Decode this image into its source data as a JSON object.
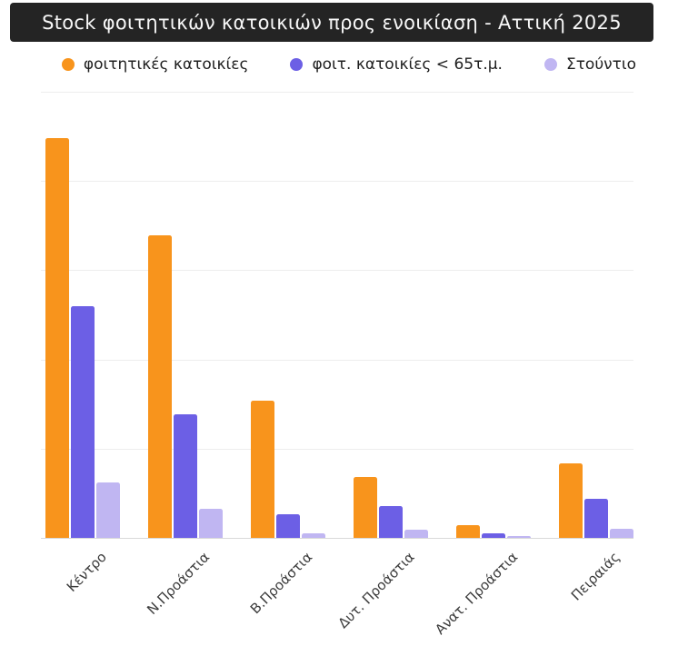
{
  "title": "Stock φοιτητικών κατοικιών προς ενοικίαση - Αττική 2025",
  "legend": [
    {
      "label": "φοιτητικές κατοικίες",
      "color": "#F8941C",
      "icon": "circle-dot-icon"
    },
    {
      "label": "φοιτ. κατοικίες < 65τ.μ.",
      "color": "#6C5FE5",
      "icon": "circle-dot-icon"
    },
    {
      "label": "Στούντιο",
      "color": "#C0B6F2",
      "icon": "circle-dot-icon"
    }
  ],
  "colors": {
    "title_bar_bg": "#242424",
    "title_text": "#f7f7f7",
    "series_orange": "#F8941C",
    "series_purple": "#6C5FE5",
    "series_lavender": "#C0B6F2",
    "gridline": "#ededed",
    "axis_line": "#d9d9d9",
    "x_label_text": "#3b3b3b",
    "background": "#ffffff"
  },
  "chart_data": {
    "type": "bar",
    "title": "Stock φοιτητικών κατοικιών προς ενοικίαση - Αττική 2025",
    "categories": [
      "Κέντρο",
      "Ν.Προάστια",
      "Β.Προάστια",
      "Δυτ. Προάστια",
      "Ανατ. Προάστια",
      "Πειραιάς"
    ],
    "series": [
      {
        "name": "φοιτητικές κατοικίες",
        "color": "#F8941C",
        "values": [
          89.6,
          67.8,
          30.8,
          13.6,
          2.9,
          16.7
        ]
      },
      {
        "name": "φοιτ. κατοικίες < 65τ.μ.",
        "color": "#6C5FE5",
        "values": [
          51.9,
          27.7,
          5.3,
          7.1,
          1.0,
          8.8
        ]
      },
      {
        "name": "Στούντιο",
        "color": "#C0B6F2",
        "values": [
          12.4,
          6.5,
          1.0,
          1.8,
          0.5,
          2.0
        ]
      }
    ],
    "xlabel": "",
    "ylabel": "",
    "ylim": [
      0,
      100
    ],
    "gridline_interval": 20,
    "y_tick_labels": [],
    "grid": true,
    "legend_position": "top",
    "x_label_rotation_deg": -45,
    "values_unit": "percent of y-axis maximum (chart displays no numeric axis labels)"
  }
}
